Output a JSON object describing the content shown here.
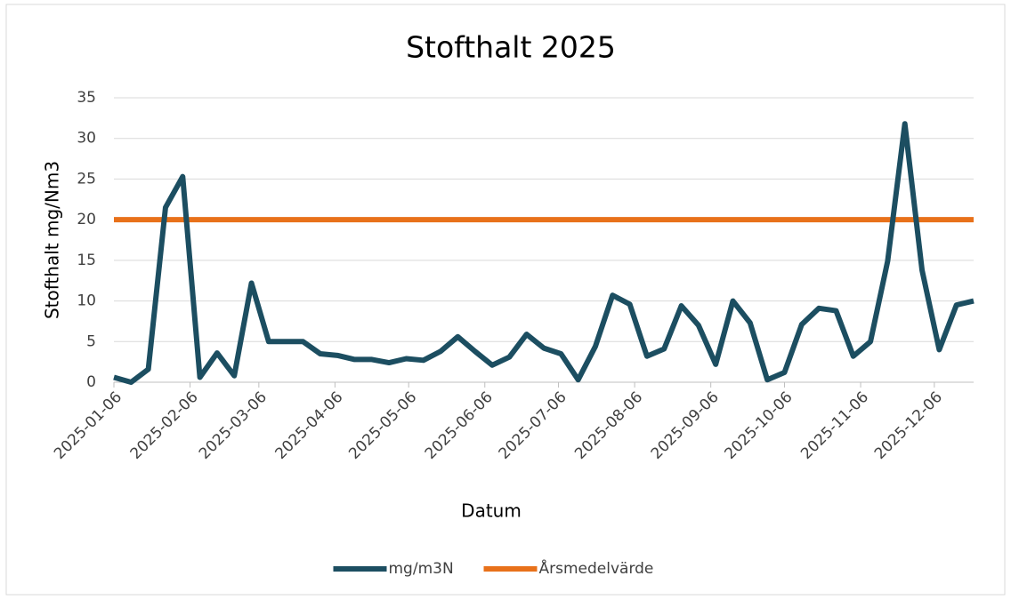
{
  "chart_data": {
    "type": "line",
    "title": "Stofthalt 2025",
    "x_label": "Datum",
    "y_label": "Stofthalt mg/Nm3",
    "x": [
      "2025-01-06",
      "2025-01-13",
      "2025-01-20",
      "2025-01-27",
      "2025-02-03",
      "2025-02-10",
      "2025-02-17",
      "2025-02-24",
      "2025-03-03",
      "2025-03-10",
      "2025-03-17",
      "2025-03-24",
      "2025-03-31",
      "2025-04-07",
      "2025-04-14",
      "2025-04-21",
      "2025-04-28",
      "2025-05-05",
      "2025-05-12",
      "2025-05-19",
      "2025-05-26",
      "2025-06-02",
      "2025-06-09",
      "2025-06-16",
      "2025-06-23",
      "2025-06-30",
      "2025-07-07",
      "2025-07-14",
      "2025-07-21",
      "2025-07-28",
      "2025-08-04",
      "2025-08-11",
      "2025-08-18",
      "2025-08-25",
      "2025-09-01",
      "2025-09-08",
      "2025-09-15",
      "2025-09-22",
      "2025-09-29",
      "2025-10-06",
      "2025-10-13",
      "2025-10-20",
      "2025-10-27",
      "2025-11-03",
      "2025-11-10",
      "2025-11-17",
      "2025-11-24",
      "2025-12-01",
      "2025-12-08",
      "2025-12-15",
      "2025-12-22"
    ],
    "series": [
      {
        "name": "mg/m3N",
        "color": "#1c4e61",
        "values": [
          0.6,
          0.0,
          1.6,
          21.5,
          25.3,
          0.6,
          3.6,
          0.8,
          12.2,
          5.0,
          5.0,
          5.0,
          3.5,
          3.3,
          2.8,
          2.8,
          2.4,
          2.9,
          2.7,
          3.8,
          5.6,
          3.8,
          2.1,
          3.1,
          5.9,
          4.2,
          3.5,
          0.3,
          4.4,
          10.7,
          9.6,
          3.2,
          4.1,
          9.4,
          7.0,
          2.2,
          10.0,
          7.3,
          0.3,
          1.2,
          7.1,
          9.1,
          8.8,
          3.2,
          5.0,
          14.9,
          31.8,
          13.8,
          4.0,
          9.5,
          10.0
        ]
      },
      {
        "name": "Årsmedelvärde",
        "color": "#e8711a",
        "values": [
          20,
          20,
          20,
          20,
          20,
          20,
          20,
          20,
          20,
          20,
          20,
          20,
          20,
          20,
          20,
          20,
          20,
          20,
          20,
          20,
          20,
          20,
          20,
          20,
          20,
          20,
          20,
          20,
          20,
          20,
          20,
          20,
          20,
          20,
          20,
          20,
          20,
          20,
          20,
          20,
          20,
          20,
          20,
          20,
          20,
          20,
          20,
          20,
          20,
          20,
          20
        ]
      }
    ],
    "xlim": [
      "2025-01-06",
      "2025-12-22"
    ],
    "xticks": [
      "2025-01-06",
      "2025-02-06",
      "2025-03-06",
      "2025-04-06",
      "2025-05-06",
      "2025-06-06",
      "2025-07-06",
      "2025-08-06",
      "2025-09-06",
      "2025-10-06",
      "2025-11-06",
      "2025-12-06"
    ],
    "ylim": [
      0,
      35
    ],
    "yticks": [
      0,
      5,
      10,
      15,
      20,
      25,
      30,
      35
    ],
    "grid": true,
    "legend": "bottom"
  }
}
